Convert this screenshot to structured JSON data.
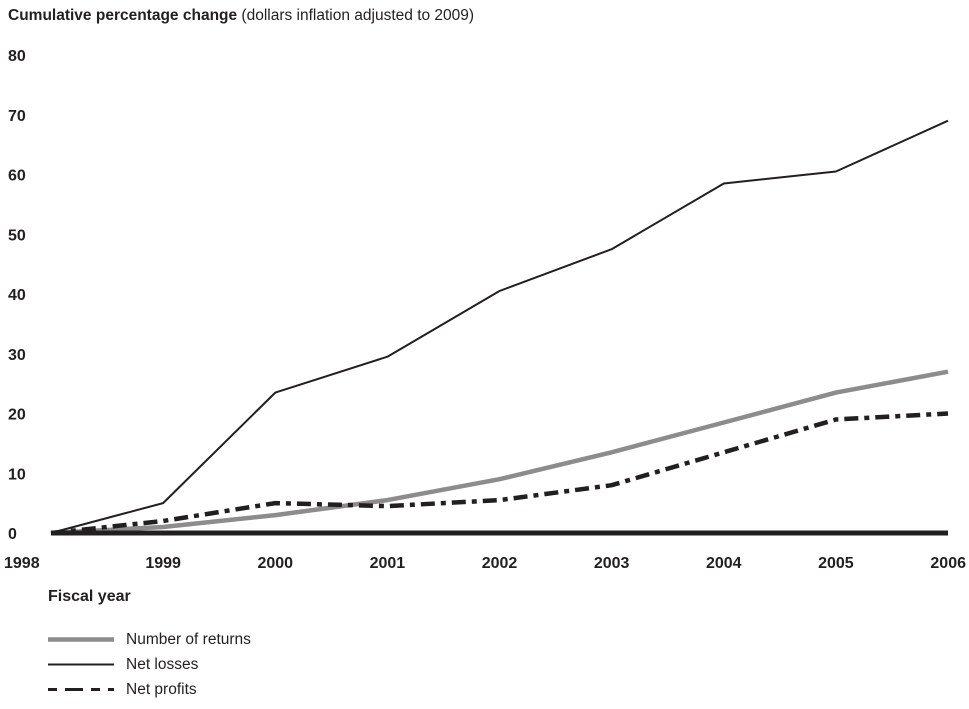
{
  "title": {
    "bold": "Cumulative percentage change",
    "normal": " (dollars inflation adjusted to 2009)"
  },
  "chart_data": {
    "type": "line",
    "title": "Cumulative percentage change (dollars inflation adjusted to 2009)",
    "xlabel": "Fiscal year",
    "ylabel": "",
    "categories": [
      "1998",
      "1999",
      "2000",
      "2001",
      "2002",
      "2003",
      "2004",
      "2005",
      "2006"
    ],
    "yticks": [
      "0",
      "10",
      "20",
      "30",
      "40",
      "50",
      "60",
      "70",
      "80"
    ],
    "ylim": [
      0,
      80
    ],
    "grid": false,
    "legend_position": "bottom-left",
    "series": [
      {
        "name": "Number of returns",
        "values": [
          0,
          1,
          3,
          5.5,
          9,
          13.5,
          18.5,
          23.5,
          27
        ],
        "color": "#8c8c8c",
        "style": "thick-solid"
      },
      {
        "name": "Net losses",
        "values": [
          0,
          5,
          23.5,
          29.5,
          40.5,
          47.5,
          58.5,
          60.5,
          69
        ],
        "color": "#231f20",
        "style": "thin-solid"
      },
      {
        "name": "Net profits",
        "values": [
          0,
          2,
          5,
          4.5,
          5.5,
          8,
          13.5,
          19,
          20
        ],
        "color": "#231f20",
        "style": "dash-dot"
      }
    ]
  }
}
